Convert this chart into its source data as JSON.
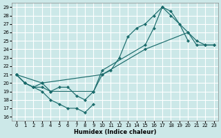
{
  "background_color": "#cce8e8",
  "grid_color": "#ffffff",
  "line_color": "#1a6b6b",
  "xlabel": "Humidex (Indice chaleur)",
  "xlim": [
    -0.5,
    23.5
  ],
  "ylim": [
    15.5,
    29.5
  ],
  "yticks": [
    16,
    17,
    18,
    19,
    20,
    21,
    22,
    23,
    24,
    25,
    26,
    27,
    28,
    29
  ],
  "xticks": [
    0,
    1,
    2,
    3,
    4,
    5,
    6,
    7,
    8,
    9,
    10,
    11,
    12,
    13,
    14,
    15,
    16,
    17,
    18,
    19,
    20,
    21,
    22,
    23
  ],
  "curve1_x": [
    0,
    1,
    2,
    3,
    4,
    5,
    6,
    7,
    8,
    9
  ],
  "curve1_y": [
    21,
    20,
    19.5,
    19,
    18,
    17.5,
    17,
    17,
    16.5,
    17.5
  ],
  "curve2_x": [
    0,
    1,
    2,
    3,
    4,
    9,
    10,
    11,
    12,
    13,
    14,
    15,
    16,
    17,
    18,
    19,
    20
  ],
  "curve2_y": [
    21,
    20,
    19.5,
    19.5,
    19,
    19,
    21,
    21.5,
    23,
    25.5,
    26.5,
    27,
    28,
    29,
    28.5,
    27,
    25
  ],
  "curve3_x": [
    0,
    1,
    2,
    3,
    4,
    5,
    6,
    7,
    8,
    9,
    10,
    15,
    16,
    17,
    18,
    20,
    21,
    22,
    23
  ],
  "curve3_y": [
    21,
    20,
    19.5,
    20,
    19,
    19.5,
    19.5,
    18.5,
    18,
    19,
    21.5,
    24.5,
    26.5,
    29,
    28,
    26,
    25,
    24.5,
    24.5
  ],
  "curve4_x": [
    0,
    3,
    10,
    15,
    20,
    21,
    22,
    23
  ],
  "curve4_y": [
    21,
    20,
    21,
    24,
    26,
    24.5,
    24.5,
    24.5
  ]
}
